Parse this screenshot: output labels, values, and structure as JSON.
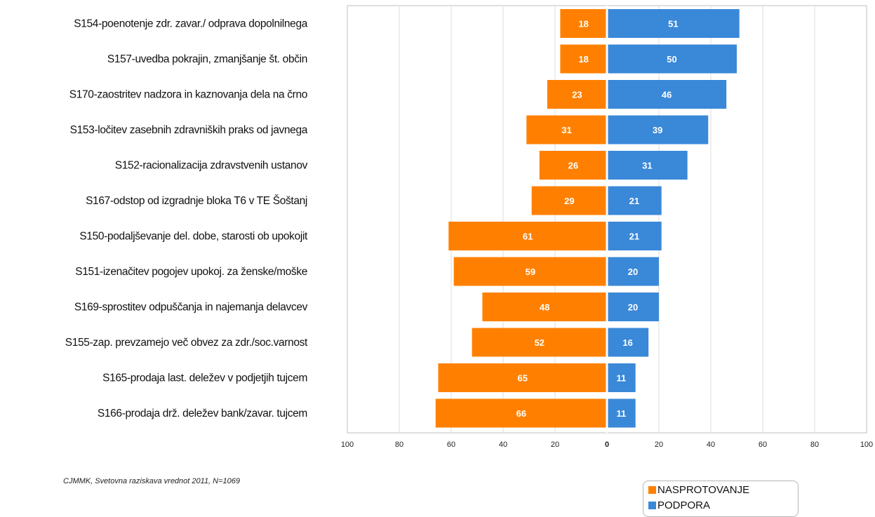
{
  "chart_data": {
    "type": "bar",
    "orientation": "diverging-horizontal",
    "categories": [
      "S154-poenotenje zdr. zavar./ odprava dopolnilnega",
      "S157-uvedba pokrajin, zmanjšanje št. občin",
      "S170-zaostritev nadzora in kaznovanja dela na črno",
      "S153-ločitev zasebnih zdravniških praks od javnega",
      "S152-racionalizacija zdravstvenih ustanov",
      "S167-odstop od izgradnje bloka T6 v TE Šoštanj",
      "S150-podaljševanje del. dobe, starosti ob upokojit",
      "S151-izenačitev pogojev upokoj. za ženske/moške",
      "S169-sprostitev odpuščanja in najemanja delavcev",
      "S155-zap. prevzamejo več obvez za zdr./soc.varnost",
      "S165-prodaja last. deležev v podjetjih tujcem",
      "S166-prodaja drž. deležev bank/zavar. tujcem"
    ],
    "series": [
      {
        "name": "NASPROTOVANJE",
        "color": "#ff8000",
        "side": "left",
        "values": [
          18,
          18,
          23,
          31,
          26,
          29,
          61,
          59,
          48,
          52,
          65,
          66
        ]
      },
      {
        "name": "PODPORA",
        "color": "#3a88d8",
        "side": "right",
        "values": [
          51,
          50,
          46,
          39,
          31,
          21,
          21,
          20,
          20,
          16,
          11,
          11
        ]
      }
    ],
    "xlim": [
      -100,
      100
    ],
    "x_tick_labels": [
      "100",
      "80",
      "60",
      "40",
      "20",
      "0",
      "20",
      "40",
      "60",
      "80",
      "100"
    ],
    "grid": "vertical",
    "legend_position": "bottom-right",
    "source_note": "CJMMK, Svetovna raziskava vrednot 2011, N=1069"
  }
}
